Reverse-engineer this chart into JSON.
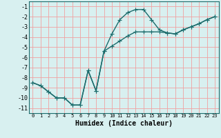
{
  "xlabel": "Humidex (Indice chaleur)",
  "bg_color": "#d8f0f0",
  "grid_color": "#f0a0a0",
  "line_color": "#1a6b6b",
  "xlim": [
    -0.5,
    23.5
  ],
  "ylim": [
    -11.5,
    -0.5
  ],
  "xticks": [
    0,
    1,
    2,
    3,
    4,
    5,
    6,
    7,
    8,
    9,
    10,
    11,
    12,
    13,
    14,
    15,
    16,
    17,
    18,
    19,
    20,
    21,
    22,
    23
  ],
  "yticks": [
    -1,
    -2,
    -3,
    -4,
    -5,
    -6,
    -7,
    -8,
    -9,
    -10,
    -11
  ],
  "curve1_x": [
    0,
    1,
    2,
    3,
    4,
    5,
    6,
    7,
    8,
    9,
    10,
    11,
    12,
    13,
    14,
    15,
    16,
    17,
    18,
    19,
    20,
    21,
    22,
    23
  ],
  "curve1_y": [
    -8.5,
    -8.8,
    -9.4,
    -10.0,
    -10.0,
    -10.7,
    -10.7,
    -7.3,
    -9.3,
    -5.4,
    -3.7,
    -2.3,
    -1.6,
    -1.3,
    -1.3,
    -2.3,
    -3.3,
    -3.6,
    -3.7,
    -3.3,
    -3.0,
    -2.7,
    -2.3,
    -2.0
  ],
  "curve2_x": [
    0,
    1,
    2,
    3,
    4,
    5,
    6,
    7,
    8,
    9,
    10,
    11,
    12,
    13,
    14,
    15,
    16,
    17,
    18,
    19,
    20,
    21,
    22,
    23
  ],
  "curve2_y": [
    -8.5,
    -8.8,
    -9.4,
    -10.0,
    -10.0,
    -10.7,
    -10.7,
    -7.3,
    -9.3,
    -5.4,
    -4.9,
    -4.4,
    -3.9,
    -3.5,
    -3.5,
    -3.5,
    -3.5,
    -3.6,
    -3.7,
    -3.3,
    -3.0,
    -2.7,
    -2.3,
    -2.0
  ],
  "marker": "+",
  "marker_size": 4,
  "line_width": 1.0
}
